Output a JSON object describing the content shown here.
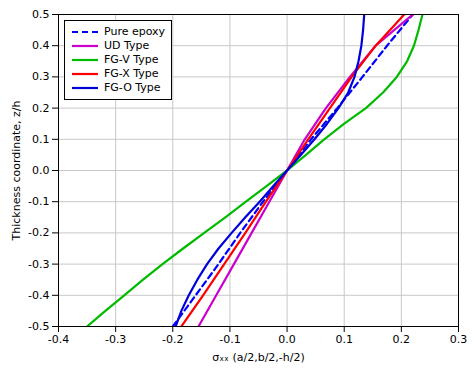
{
  "chart_data": {
    "type": "line",
    "xlabel": "σₓₓ (a/2,b/2,-h/2)",
    "ylabel": "Thickness coordinate, z/h",
    "xlim": [
      -0.4,
      0.3
    ],
    "ylim": [
      -0.5,
      0.5
    ],
    "xticks": [
      -0.4,
      -0.3,
      -0.2,
      -0.1,
      {
        "value": 0,
        "label": "0.0"
      },
      0.1,
      0.2,
      0.3
    ],
    "yticks": [
      -0.5,
      -0.4,
      -0.3,
      -0.2,
      -0.1,
      {
        "value": 0,
        "label": "0.0"
      },
      0.1,
      0.2,
      0.3,
      0.4,
      0.5
    ],
    "grid": true,
    "legend": "upper left",
    "series": [
      {
        "name": "Pure epoxy",
        "color": "#0000ff",
        "line_style": "dashed",
        "x": [
          -0.2,
          -0.16,
          -0.12,
          -0.082,
          -0.042,
          0.0,
          0.042,
          0.088,
          0.132,
          0.175,
          0.22
        ],
        "values": [
          -0.5,
          -0.4,
          -0.3,
          -0.2,
          -0.1,
          0.0,
          0.1,
          0.2,
          0.3,
          0.4,
          0.5
        ]
      },
      {
        "name": "UD Type",
        "color": "#cc00cc",
        "line_style": "solid",
        "x": [
          -0.155,
          -0.124,
          -0.093,
          -0.062,
          -0.031,
          0.0,
          0.031,
          0.068,
          0.11,
          0.155,
          0.22
        ],
        "values": [
          -0.5,
          -0.4,
          -0.3,
          -0.2,
          -0.1,
          0.0,
          0.1,
          0.2,
          0.3,
          0.4,
          0.5
        ]
      },
      {
        "name": "FG-V Type",
        "color": "#00bb00",
        "line_style": "solid",
        "x": [
          -0.35,
          -0.318,
          -0.285,
          -0.252,
          -0.218,
          -0.182,
          -0.145,
          -0.108,
          -0.072,
          -0.036,
          0.0,
          0.033,
          0.065,
          0.1,
          0.138,
          0.168,
          0.192,
          0.21,
          0.222,
          0.23,
          0.237
        ],
        "values": [
          -0.5,
          -0.45,
          -0.4,
          -0.35,
          -0.3,
          -0.25,
          -0.2,
          -0.15,
          -0.1,
          -0.05,
          0.0,
          0.05,
          0.1,
          0.15,
          0.2,
          0.25,
          0.3,
          0.35,
          0.4,
          0.45,
          0.5
        ]
      },
      {
        "name": "FG-X Type",
        "color": "#ff0000",
        "line_style": "solid",
        "x": [
          -0.185,
          -0.147,
          -0.11,
          -0.073,
          -0.037,
          0.0,
          0.037,
          0.075,
          0.113,
          0.155,
          0.205
        ],
        "values": [
          -0.5,
          -0.4,
          -0.3,
          -0.2,
          -0.1,
          0.0,
          0.1,
          0.2,
          0.3,
          0.4,
          0.5
        ]
      },
      {
        "name": "FG-O Type",
        "color": "#0000dd",
        "line_style": "solid",
        "x": [
          -0.195,
          -0.185,
          -0.172,
          -0.157,
          -0.14,
          -0.12,
          -0.097,
          -0.073,
          -0.048,
          -0.024,
          0.0,
          0.024,
          0.048,
          0.07,
          0.09,
          0.107,
          0.118,
          0.125,
          0.13,
          0.133,
          0.135
        ],
        "values": [
          -0.5,
          -0.45,
          -0.4,
          -0.35,
          -0.3,
          -0.25,
          -0.2,
          -0.15,
          -0.1,
          -0.05,
          0.0,
          0.05,
          0.1,
          0.15,
          0.2,
          0.25,
          0.3,
          0.35,
          0.4,
          0.45,
          0.5
        ]
      }
    ]
  }
}
